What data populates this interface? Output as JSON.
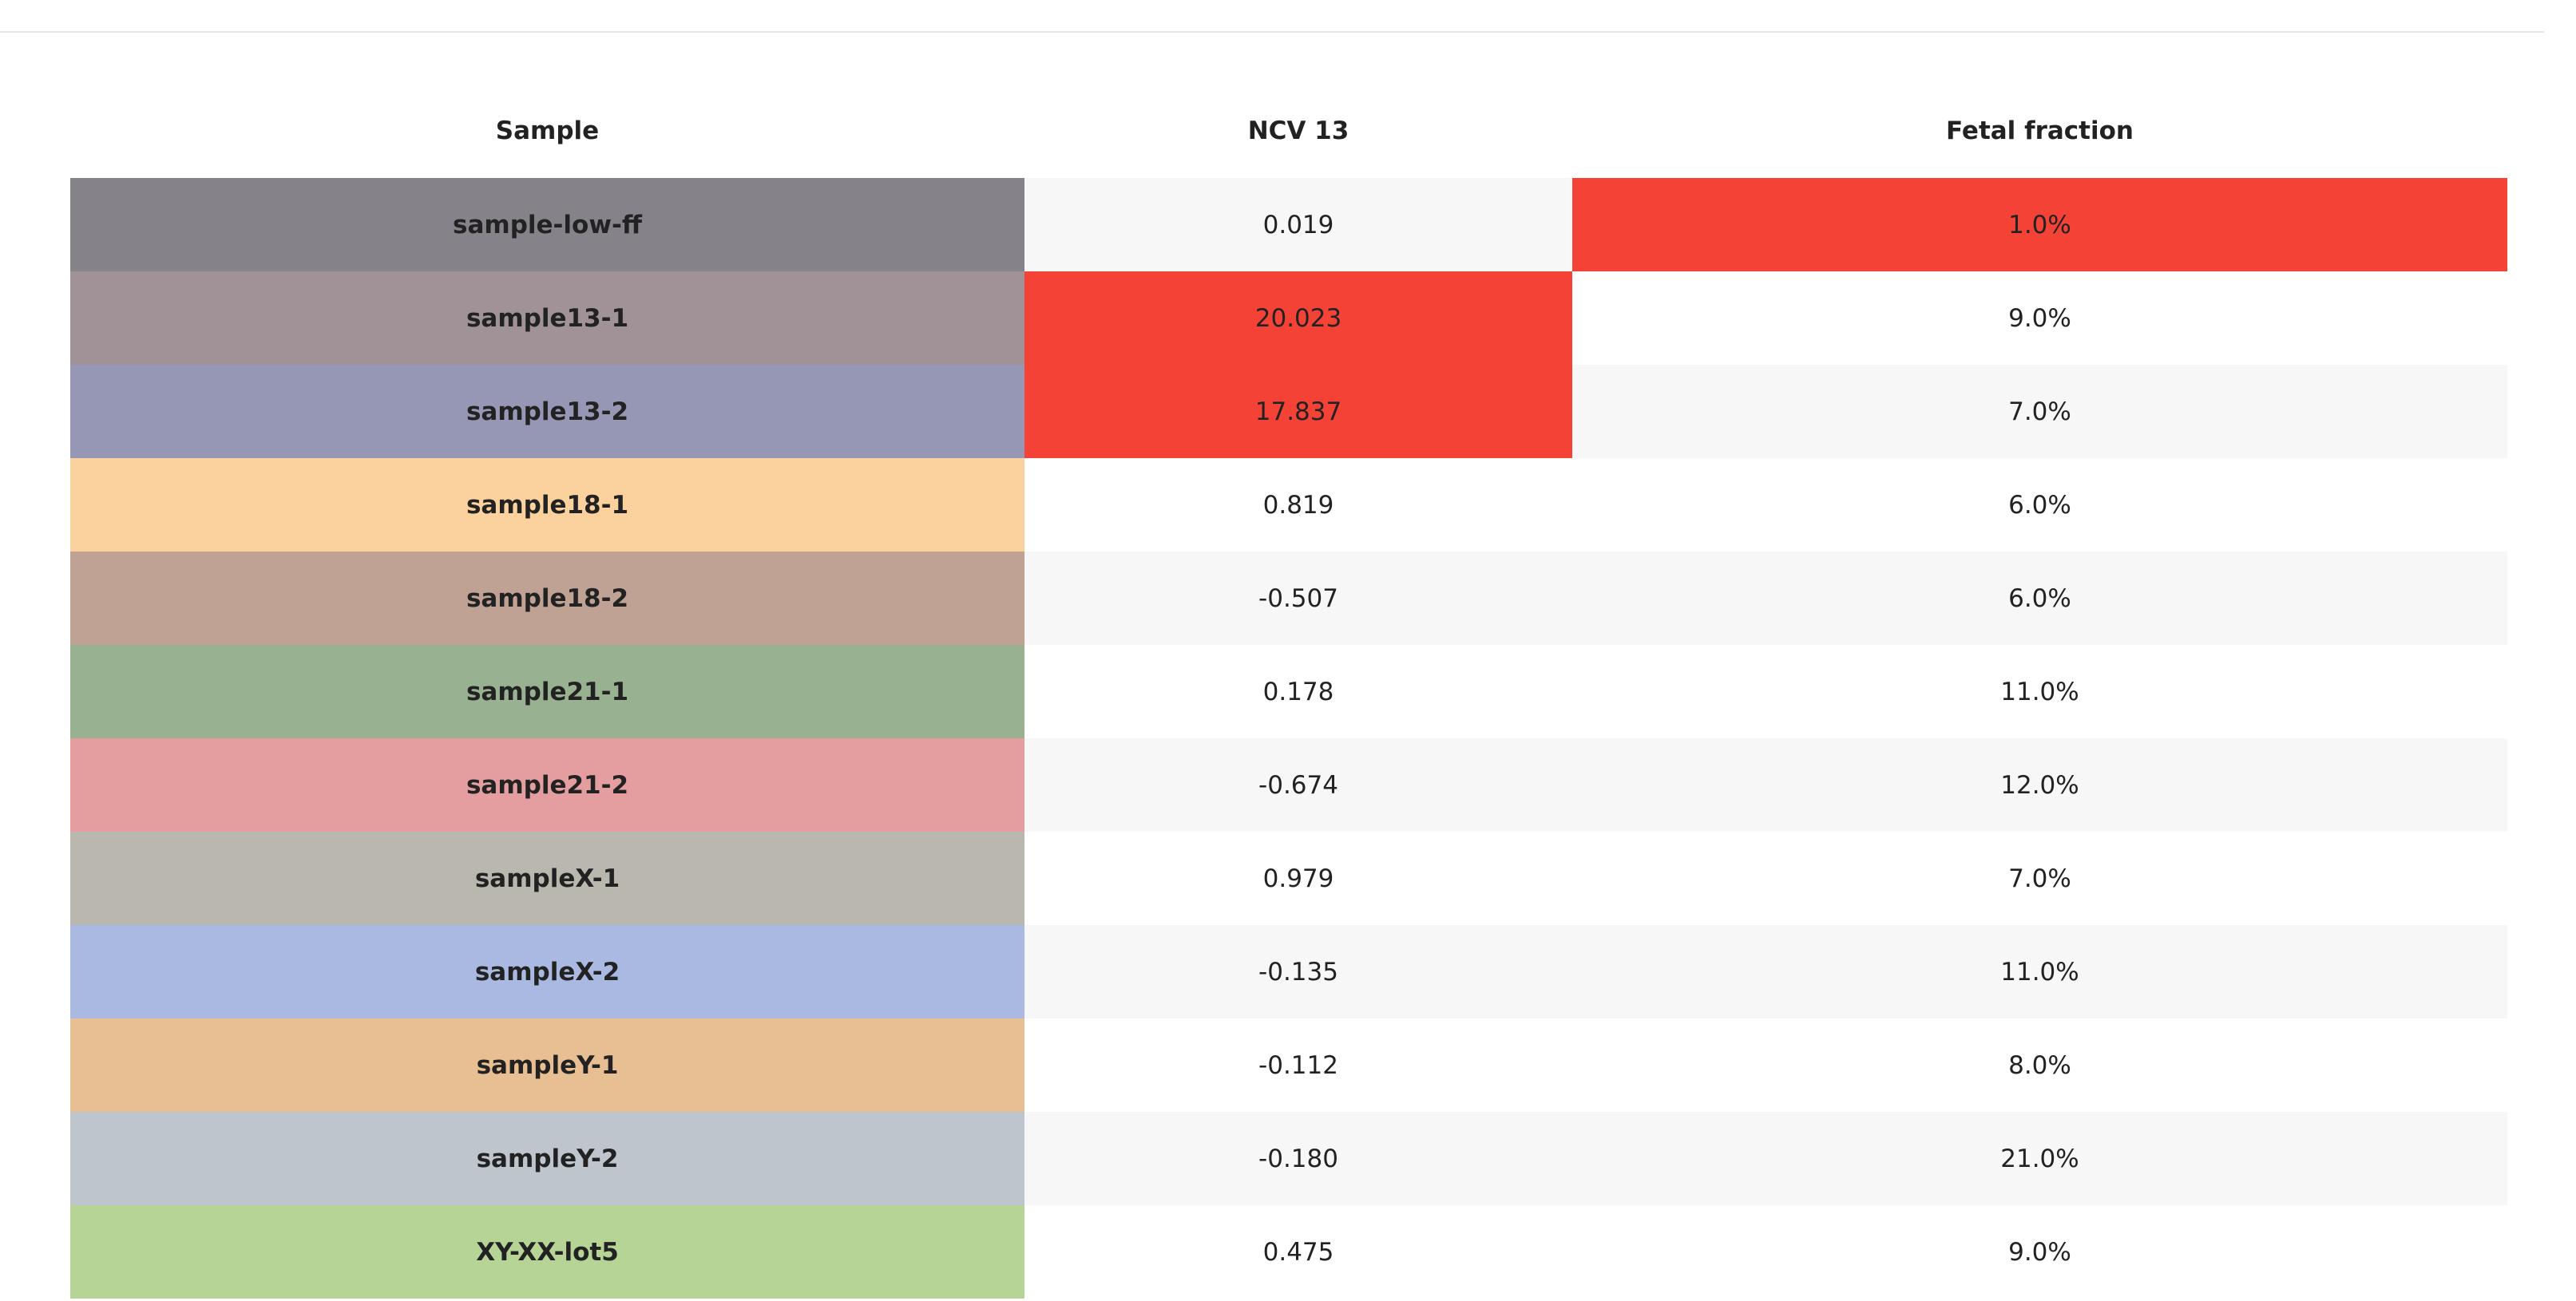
{
  "table": {
    "headers": [
      "Sample",
      "NCV 13",
      "Fetal fraction"
    ],
    "highlight_color": "#f44336",
    "rows": [
      {
        "sample": "sample-low-ff",
        "ncv13": "0.019",
        "ff": "1.0%",
        "color": "#86828a",
        "ncv_flag": false,
        "ff_flag": true
      },
      {
        "sample": "sample13-1",
        "ncv13": "20.023",
        "ff": "9.0%",
        "color": "#a19297",
        "ncv_flag": true,
        "ff_flag": false
      },
      {
        "sample": "sample13-2",
        "ncv13": "17.837",
        "ff": "7.0%",
        "color": "#9597b4",
        "ncv_flag": true,
        "ff_flag": false
      },
      {
        "sample": "sample18-1",
        "ncv13": "0.819",
        "ff": "6.0%",
        "color": "#fbd29d",
        "ncv_flag": false,
        "ff_flag": false
      },
      {
        "sample": "sample18-2",
        "ncv13": "-0.507",
        "ff": "6.0%",
        "color": "#bfa294",
        "ncv_flag": false,
        "ff_flag": false
      },
      {
        "sample": "sample21-1",
        "ncv13": "0.178",
        "ff": "11.0%",
        "color": "#98b190",
        "ncv_flag": false,
        "ff_flag": false
      },
      {
        "sample": "sample21-2",
        "ncv13": "-0.674",
        "ff": "12.0%",
        "color": "#e59e9f",
        "ncv_flag": false,
        "ff_flag": false
      },
      {
        "sample": "sampleX-1",
        "ncv13": "0.979",
        "ff": "7.0%",
        "color": "#bab7ae",
        "ncv_flag": false,
        "ff_flag": false
      },
      {
        "sample": "sampleX-2",
        "ncv13": "-0.135",
        "ff": "11.0%",
        "color": "#a9b9e2",
        "ncv_flag": false,
        "ff_flag": false
      },
      {
        "sample": "sampleY-1",
        "ncv13": "-0.112",
        "ff": "8.0%",
        "color": "#e8be93",
        "ncv_flag": false,
        "ff_flag": false
      },
      {
        "sample": "sampleY-2",
        "ncv13": "-0.180",
        "ff": "21.0%",
        "color": "#bfc5cd",
        "ncv_flag": false,
        "ff_flag": false
      },
      {
        "sample": "XY-XX-lot5",
        "ncv13": "0.475",
        "ff": "9.0%",
        "color": "#b6d496",
        "ncv_flag": false,
        "ff_flag": false
      }
    ]
  }
}
